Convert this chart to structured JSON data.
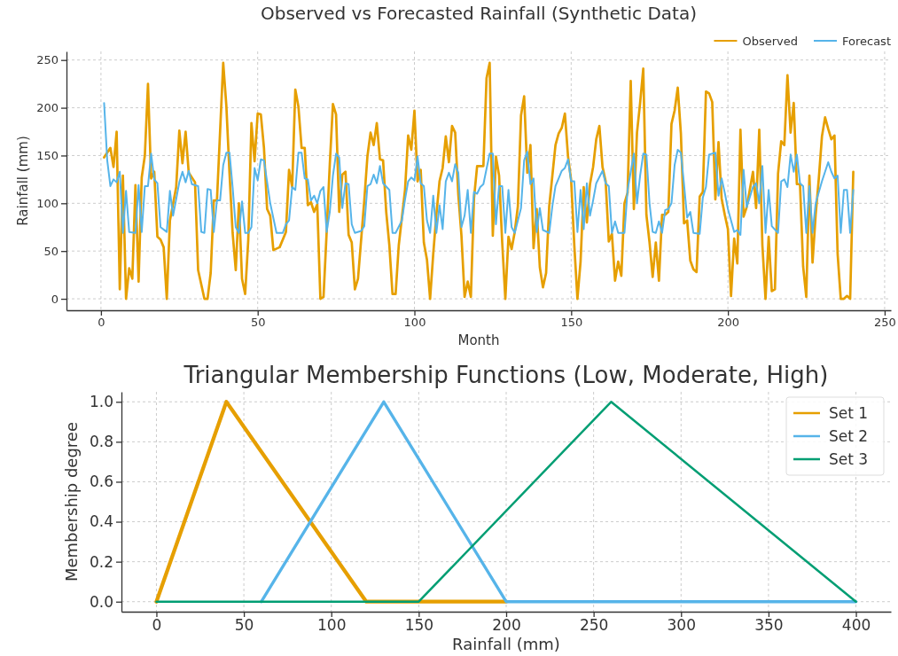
{
  "chart_data": [
    {
      "type": "line",
      "title": "Observed vs Forecasted Rainfall (Synthetic Data)",
      "xlabel": "Month",
      "ylabel": "Rainfall (mm)",
      "xlim": [
        -11,
        252
      ],
      "ylim": [
        -12,
        259
      ],
      "xticks": [
        0,
        50,
        100,
        150,
        200,
        250
      ],
      "yticks": [
        0,
        50,
        100,
        150,
        200,
        250
      ],
      "grid": true,
      "legend": "top right",
      "series": [
        {
          "name": "Observed",
          "color": "#e69f00",
          "x": [
            1,
            3,
            4,
            5,
            6,
            7,
            8,
            9,
            10,
            11,
            12,
            13,
            14,
            15,
            16,
            17,
            18,
            19,
            20,
            21,
            22,
            24,
            25,
            26,
            27,
            28,
            30,
            31,
            33,
            34,
            35,
            36,
            37,
            39,
            40,
            41,
            42,
            43,
            44,
            45,
            46,
            47,
            48,
            49,
            50,
            51,
            52,
            53,
            54,
            55,
            57,
            59,
            60,
            61,
            62,
            63,
            64,
            65,
            66,
            67,
            68,
            69,
            70,
            71,
            72,
            73,
            74,
            75,
            76,
            77,
            78,
            79,
            80,
            81,
            82,
            84,
            85,
            86,
            87,
            88,
            89,
            90,
            91,
            92,
            93,
            94,
            95,
            97,
            98,
            99,
            100,
            101,
            102,
            103,
            104,
            105,
            106,
            107,
            108,
            109,
            110,
            111,
            112,
            113,
            114,
            115,
            116,
            117,
            118,
            119,
            120,
            121,
            122,
            123,
            124,
            125,
            126,
            127,
            128,
            129,
            130,
            131,
            132,
            133,
            134,
            135,
            136,
            137,
            138,
            139,
            140,
            141,
            142,
            143,
            144,
            145,
            146,
            147,
            148,
            149,
            150,
            151,
            152,
            153,
            154,
            155,
            156,
            157,
            158,
            159,
            160,
            161,
            162,
            163,
            164,
            165,
            166,
            167,
            168,
            169,
            170,
            171,
            172,
            173,
            174,
            175,
            176,
            177,
            178,
            179,
            180,
            181,
            182,
            183,
            184,
            185,
            186,
            187,
            188,
            189,
            190,
            191,
            192,
            193,
            194,
            195,
            196,
            197,
            198,
            199,
            200,
            201,
            202,
            203,
            204,
            205,
            206,
            208,
            209,
            210,
            211,
            212,
            213,
            214,
            215,
            216,
            217,
            218,
            219,
            220,
            221,
            222,
            223,
            224,
            225,
            226,
            227,
            228,
            229,
            230,
            231,
            232,
            233,
            234,
            235,
            236,
            237,
            238,
            239,
            240
          ],
          "values": [
            148,
            158,
            138,
            175,
            10,
            129,
            0,
            32,
            21,
            119,
            18,
            127,
            150,
            225,
            126,
            133,
            65,
            62,
            54,
            0,
            82,
            117,
            176,
            142,
            175,
            132,
            122,
            30,
            0,
            0,
            27,
            103,
            103,
            247,
            202,
            132,
            69,
            30,
            100,
            21,
            5,
            62,
            184,
            144,
            194,
            193,
            158,
            94,
            87,
            51,
            54,
            70,
            135,
            117,
            219,
            201,
            158,
            158,
            98,
            101,
            91,
            99,
            0,
            2,
            70,
            141,
            204,
            193,
            91,
            130,
            133,
            67,
            59,
            10,
            21,
            103,
            149,
            174,
            161,
            184,
            146,
            145,
            91,
            56,
            5,
            5,
            56,
            114,
            171,
            156,
            197,
            123,
            135,
            59,
            41,
            0,
            47,
            88,
            123,
            137,
            170,
            143,
            181,
            174,
            109,
            66,
            2,
            18,
            2,
            105,
            139,
            139,
            139,
            231,
            247,
            66,
            149,
            129,
            59,
            0,
            65,
            52,
            70,
            97,
            192,
            212,
            132,
            161,
            53,
            94,
            33,
            12,
            27,
            97,
            129,
            161,
            173,
            179,
            194,
            149,
            124,
            56,
            0,
            39,
            117,
            80,
            120,
            138,
            167,
            181,
            138,
            123,
            60,
            68,
            19,
            39,
            24,
            100,
            111,
            228,
            94,
            174,
            205,
            241,
            88,
            59,
            23,
            59,
            19,
            88,
            88,
            91,
            183,
            197,
            221,
            173,
            79,
            82,
            40,
            31,
            28,
            107,
            112,
            217,
            215,
            206,
            104,
            164,
            105,
            88,
            73,
            3,
            63,
            37,
            177,
            86,
            96,
            133,
            95,
            177,
            56,
            0,
            65,
            8,
            10,
            131,
            165,
            161,
            234,
            174,
            205,
            120,
            120,
            34,
            2,
            129,
            38,
            88,
            126,
            170,
            190,
            178,
            167,
            171,
            47,
            0,
            0,
            3,
            0,
            133
          ]
        },
        {
          "name": "Forecast",
          "color": "#56b4e9",
          "x": [
            1,
            2,
            3,
            4,
            5,
            6,
            7,
            8,
            9,
            11,
            12,
            13,
            14,
            15,
            16,
            17,
            18,
            19,
            21,
            22,
            23,
            25,
            26,
            27,
            28,
            29,
            31,
            32,
            33,
            34,
            35,
            36,
            37,
            38,
            39,
            40,
            41,
            42,
            43,
            44,
            45,
            46,
            47,
            48,
            49,
            50,
            51,
            52,
            54,
            56,
            58,
            59,
            60,
            61,
            62,
            63,
            64,
            65,
            66,
            67,
            68,
            69,
            70,
            71,
            72,
            73,
            74,
            75,
            76,
            77,
            78,
            79,
            80,
            81,
            83,
            84,
            85,
            86,
            87,
            88,
            89,
            90,
            92,
            93,
            94,
            96,
            97,
            98,
            99,
            100,
            101,
            102,
            103,
            104,
            105,
            106,
            107,
            108,
            109,
            110,
            111,
            112,
            113,
            114,
            115,
            116,
            117,
            118,
            119,
            120,
            121,
            122,
            124,
            125,
            126,
            127,
            128,
            129,
            130,
            131,
            132,
            134,
            135,
            136,
            137,
            138,
            139,
            140,
            141,
            143,
            144,
            145,
            146,
            147,
            148,
            149,
            150,
            151,
            152,
            153,
            154,
            155,
            156,
            157,
            158,
            160,
            161,
            162,
            163,
            164,
            165,
            167,
            168,
            170,
            171,
            172,
            173,
            174,
            175,
            176,
            177,
            178,
            179,
            180,
            181,
            182,
            183,
            184,
            185,
            186,
            187,
            188,
            189,
            191,
            192,
            193,
            194,
            196,
            197,
            198,
            199,
            200,
            202,
            203,
            204,
            205,
            206,
            208,
            209,
            210,
            211,
            212,
            213,
            214,
            216,
            217,
            218,
            219,
            220,
            221,
            222,
            223,
            224,
            225,
            226,
            227,
            228,
            230,
            232,
            233,
            234,
            235,
            236,
            237,
            238,
            239,
            240
          ],
          "values": [
            205,
            145,
            118,
            125,
            122,
            133,
            69,
            113,
            70,
            69,
            119,
            70,
            118,
            118,
            152,
            125,
            121,
            75,
            70,
            113,
            87,
            122,
            133,
            122,
            134,
            120,
            118,
            70,
            69,
            115,
            114,
            70,
            103,
            103,
            140,
            153,
            153,
            117,
            75,
            69,
            102,
            69,
            69,
            75,
            137,
            124,
            146,
            145,
            100,
            69,
            69,
            78,
            82,
            117,
            114,
            153,
            153,
            126,
            125,
            103,
            108,
            100,
            113,
            117,
            70,
            91,
            129,
            152,
            148,
            95,
            121,
            120,
            78,
            69,
            71,
            76,
            118,
            120,
            130,
            121,
            139,
            121,
            114,
            69,
            69,
            82,
            104,
            123,
            127,
            124,
            149,
            121,
            118,
            82,
            69,
            108,
            69,
            98,
            73,
            123,
            132,
            123,
            141,
            132,
            75,
            87,
            114,
            69,
            112,
            110,
            117,
            120,
            152,
            152,
            78,
            118,
            118,
            69,
            114,
            75,
            69,
            95,
            145,
            154,
            120,
            126,
            70,
            95,
            72,
            69,
            97,
            118,
            126,
            134,
            137,
            146,
            123,
            123,
            70,
            114,
            73,
            121,
            87,
            103,
            121,
            134,
            121,
            118,
            69,
            81,
            69,
            69,
            114,
            152,
            100,
            129,
            152,
            151,
            100,
            70,
            69,
            81,
            69,
            93,
            94,
            100,
            140,
            156,
            153,
            120,
            85,
            91,
            69,
            68,
            106,
            117,
            151,
            153,
            108,
            126,
            111,
            94,
            70,
            72,
            67,
            135,
            96,
            117,
            121,
            100,
            139,
            69,
            114,
            76,
            69,
            123,
            125,
            117,
            151,
            133,
            151,
            121,
            118,
            69,
            118,
            69,
            100,
            123,
            143,
            133,
            126,
            129,
            69,
            114,
            114,
            69,
            114
          ]
        }
      ]
    },
    {
      "type": "line",
      "title": "Triangular Membership Functions (Low, Moderate, High)",
      "xlabel": "Rainfall (mm)",
      "ylabel": "Membership degree",
      "xlim": [
        -20,
        420
      ],
      "ylim": [
        -0.05,
        1.05
      ],
      "xticks": [
        0,
        50,
        100,
        150,
        200,
        250,
        300,
        350,
        400
      ],
      "yticks": [
        {
          "value": 0,
          "label": "0.0"
        },
        {
          "value": 0.2,
          "label": "0.2"
        },
        {
          "value": 0.4,
          "label": "0.4"
        },
        {
          "value": 0.6,
          "label": "0.6"
        },
        {
          "value": 0.8,
          "label": "0.8"
        },
        {
          "value": 1,
          "label": "1.0"
        }
      ],
      "grid": true,
      "legend": "top right",
      "series": [
        {
          "name": "Set 1",
          "color": "#e69f00",
          "x": [
            0,
            40,
            120,
            200
          ],
          "values": [
            0,
            1,
            0,
            0
          ]
        },
        {
          "name": "Set 2",
          "color": "#56b4e9",
          "x": [
            60,
            130,
            200,
            400
          ],
          "values": [
            0,
            1,
            0,
            0
          ]
        },
        {
          "name": "Set 3",
          "color": "#009e73",
          "x": [
            0,
            150,
            260,
            400
          ],
          "values": [
            0,
            0,
            1,
            0
          ]
        }
      ]
    }
  ]
}
